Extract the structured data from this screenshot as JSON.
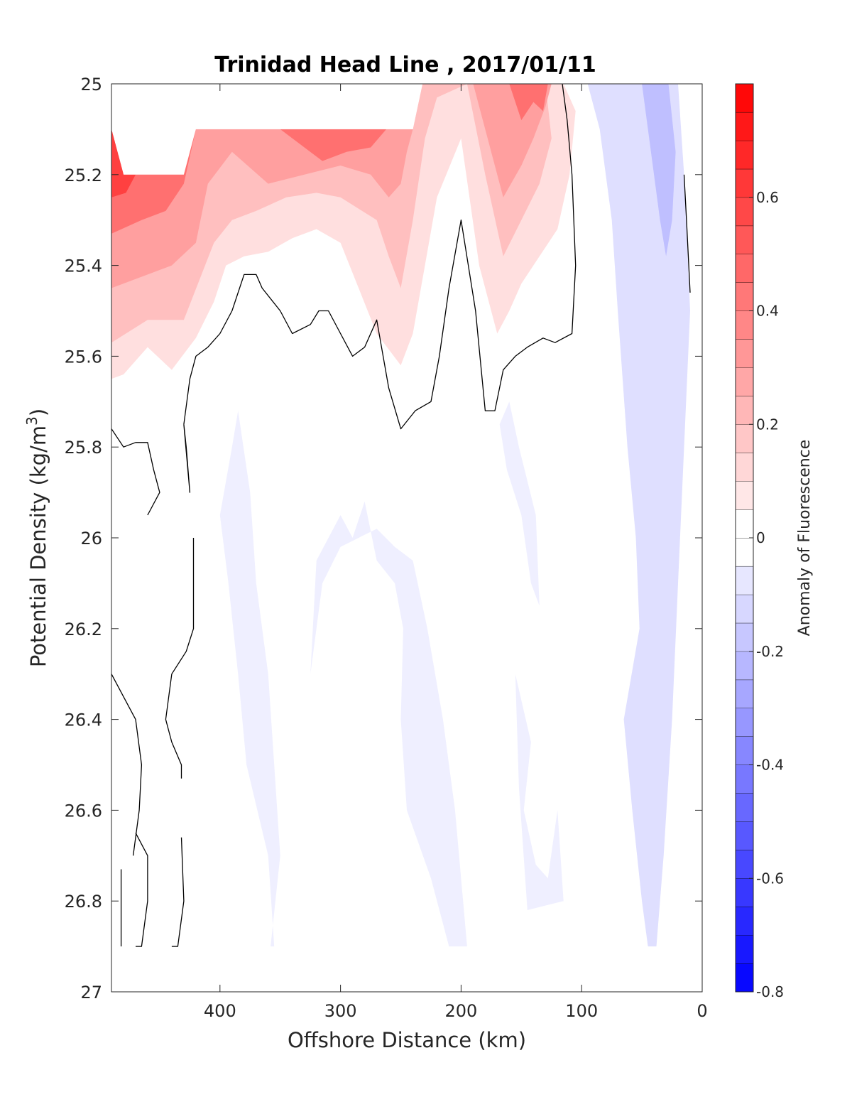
{
  "chart_data": {
    "type": "heatmap",
    "subtype": "filled contour section",
    "title": "Trinidad Head Line , 2017/01/11",
    "xlabel": "Offshore Distance (km)",
    "ylabel": "Potential Density (kg/m",
    "ylabel_superscript": "3",
    "ylabel_suffix": ")",
    "colorbar_label": "Anomaly of Fluorescence",
    "x_axis": {
      "range": [
        490,
        0
      ],
      "reversed": true,
      "ticks": [
        400,
        300,
        200,
        100,
        0
      ],
      "tick_labels": [
        "400",
        "300",
        "200",
        "100",
        "0"
      ]
    },
    "y_axis": {
      "range": [
        25,
        27
      ],
      "reversed": true,
      "ticks": [
        25,
        25.2,
        25.4,
        25.6,
        25.8,
        26,
        26.2,
        26.4,
        26.6,
        26.8,
        27
      ],
      "tick_labels": [
        "25",
        "25.2",
        "25.4",
        "25.6",
        "25.8",
        "26",
        "26.2",
        "26.4",
        "26.6",
        "26.8",
        "27"
      ]
    },
    "colorbar": {
      "range": [
        -0.8,
        0.8
      ],
      "level_step": 0.05,
      "ticks": [
        0.6,
        0.4,
        0.2,
        0,
        -0.2,
        -0.4,
        -0.6,
        -0.8
      ],
      "tick_labels": [
        "0.6",
        "0.4",
        "0.2",
        "0",
        "-0.2",
        "-0.4",
        "-0.6",
        "-0.8"
      ],
      "color_positive": "#ff0000",
      "color_negative": "#0000ff",
      "color_zero": "#ffffff"
    },
    "data_region_lower_limit": 26.9,
    "missing_data_regions": [
      {
        "x": [
          490,
          480,
          430,
          420,
          240,
          232,
          490
        ],
        "y": [
          25.0,
          25.2,
          25.2,
          25.1,
          25.1,
          25.0,
          25.0
        ]
      }
    ],
    "red_levels": [
      {
        "anomaly": 0.1,
        "x": [
          490,
          490,
          480,
          460,
          440,
          420,
          405,
          395,
          380,
          360,
          340,
          320,
          300,
          285,
          270,
          250,
          240,
          230,
          220,
          200,
          185,
          170,
          160,
          150,
          135,
          120,
          110,
          105,
          115,
          232,
          240,
          420,
          430,
          480,
          490
        ],
        "y": [
          25.1,
          25.65,
          25.64,
          25.58,
          25.63,
          25.56,
          25.48,
          25.4,
          25.38,
          25.37,
          25.34,
          25.32,
          25.35,
          25.45,
          25.55,
          25.62,
          25.55,
          25.4,
          25.25,
          25.12,
          25.4,
          25.55,
          25.5,
          25.44,
          25.38,
          25.32,
          25.2,
          25.06,
          25.0,
          25.0,
          25.1,
          25.1,
          25.2,
          25.2,
          25.1
        ]
      },
      {
        "anomaly": 0.2,
        "x": [
          490,
          490,
          460,
          430,
          405,
          390,
          370,
          345,
          320,
          300,
          270,
          260,
          250,
          240,
          230,
          220,
          195,
          180,
          165,
          150,
          135,
          125,
          130,
          232,
          240,
          420,
          430,
          480,
          490
        ],
        "y": [
          25.1,
          25.57,
          25.52,
          25.52,
          25.35,
          25.3,
          25.28,
          25.25,
          25.24,
          25.25,
          25.3,
          25.38,
          25.45,
          25.3,
          25.12,
          25.03,
          25.0,
          25.2,
          25.38,
          25.3,
          25.22,
          25.12,
          25.0,
          25.0,
          25.1,
          25.1,
          25.2,
          25.2,
          25.1
        ]
      },
      {
        "anomaly": 0.3,
        "x": [
          490,
          490,
          460,
          440,
          420,
          410,
          390,
          360,
          330,
          300,
          275,
          260,
          250,
          245,
          240,
          420,
          430,
          480,
          490
        ],
        "y": [
          25.1,
          25.45,
          25.42,
          25.4,
          25.35,
          25.22,
          25.15,
          25.22,
          25.2,
          25.18,
          25.2,
          25.25,
          25.22,
          25.15,
          25.1,
          25.1,
          25.2,
          25.2,
          25.1
        ]
      },
      {
        "anomaly": 0.3,
        "x": [
          190,
          178,
          165,
          150,
          140,
          130,
          125,
          155,
          190
        ],
        "y": [
          25.0,
          25.12,
          25.25,
          25.18,
          25.12,
          25.05,
          25.0,
          25.0,
          25.0
        ]
      },
      {
        "anomaly": 0.45,
        "x": [
          490,
          490,
          465,
          445,
          430,
          420,
          480,
          490
        ],
        "y": [
          25.1,
          25.33,
          25.3,
          25.28,
          25.22,
          25.1,
          25.2,
          25.1
        ]
      },
      {
        "anomaly": 0.45,
        "x": [
          350,
          330,
          315,
          295,
          275,
          262,
          350
        ],
        "y": [
          25.1,
          25.14,
          25.17,
          25.15,
          25.14,
          25.1,
          25.1
        ]
      },
      {
        "anomaly": 0.45,
        "x": [
          160,
          150,
          140,
          132,
          128,
          160
        ],
        "y": [
          25.0,
          25.08,
          25.04,
          25.06,
          25.0,
          25.0
        ]
      },
      {
        "anomaly": 0.6,
        "x": [
          490,
          490,
          478,
          470,
          480,
          490
        ],
        "y": [
          25.1,
          25.25,
          25.24,
          25.2,
          25.2,
          25.1
        ]
      }
    ],
    "blue_levels": [
      {
        "anomaly": -0.1,
        "x": [
          95,
          85,
          75,
          70,
          62,
          55,
          52,
          65,
          58,
          50,
          45,
          38,
          32,
          25,
          20,
          10,
          15,
          20,
          95
        ],
        "y": [
          25.0,
          25.1,
          25.3,
          25.5,
          25.8,
          26.0,
          26.2,
          26.4,
          26.6,
          26.8,
          26.9,
          26.9,
          26.7,
          26.4,
          26.1,
          25.5,
          25.2,
          25.0,
          25.0
        ]
      },
      {
        "anomaly": -0.2,
        "x": [
          50,
          45,
          40,
          35,
          30,
          25,
          22,
          28,
          36,
          50
        ],
        "y": [
          25.0,
          25.1,
          25.2,
          25.3,
          25.38,
          25.3,
          25.15,
          25.0,
          25.0,
          25.0
        ]
      },
      {
        "anomaly": -0.05,
        "x": [
          385,
          375,
          370,
          360,
          355,
          350,
          358,
          355,
          360,
          378,
          385,
          393,
          400,
          390
        ],
        "y": [
          25.72,
          25.9,
          26.1,
          26.3,
          26.5,
          26.7,
          26.9,
          26.9,
          26.7,
          26.5,
          26.3,
          26.1,
          25.95,
          25.8
        ]
      },
      {
        "anomaly": -0.05,
        "x": [
          320,
          300,
          290,
          280,
          270,
          255,
          248,
          250,
          245,
          225,
          210,
          195,
          205,
          215,
          228,
          240,
          255,
          270,
          285,
          300,
          315,
          325
        ],
        "y": [
          26.05,
          25.95,
          26.0,
          25.92,
          26.05,
          26.1,
          26.2,
          26.4,
          26.6,
          26.75,
          26.9,
          26.9,
          26.6,
          26.4,
          26.2,
          26.05,
          26.02,
          25.98,
          26.0,
          26.02,
          26.1,
          26.3
        ]
      },
      {
        "anomaly": -0.05,
        "x": [
          160,
          152,
          138,
          135,
          142,
          150,
          162,
          168
        ],
        "y": [
          25.7,
          25.8,
          25.95,
          26.15,
          26.1,
          25.95,
          25.85,
          25.75
        ]
      },
      {
        "anomaly": -0.05,
        "x": [
          155,
          142,
          148,
          138,
          128,
          120,
          115,
          145,
          152
        ],
        "y": [
          26.3,
          26.45,
          26.6,
          26.72,
          26.75,
          26.6,
          26.8,
          26.82,
          26.55
        ]
      }
    ],
    "contour_lines": [
      {
        "level": 0,
        "x": [
          116,
          112,
          108,
          105,
          108,
          122,
          132,
          145,
          155,
          165,
          172,
          180,
          188,
          200,
          210,
          218,
          225,
          238,
          250,
          260,
          270,
          280,
          290,
          300,
          310,
          318,
          325,
          340,
          350,
          365,
          370,
          380,
          390,
          400,
          410,
          420,
          425,
          430
        ],
        "y": [
          25.0,
          25.08,
          25.2,
          25.4,
          25.55,
          25.57,
          25.56,
          25.58,
          25.6,
          25.63,
          25.72,
          25.72,
          25.5,
          25.3,
          25.45,
          25.6,
          25.7,
          25.72,
          25.76,
          25.67,
          25.52,
          25.58,
          25.6,
          25.55,
          25.5,
          25.5,
          25.53,
          25.55,
          25.5,
          25.45,
          25.42,
          25.42,
          25.5,
          25.55,
          25.58,
          25.6,
          25.65,
          25.75
        ]
      },
      {
        "level": 0,
        "x": [
          430,
          428,
          425,
          430
        ],
        "y": [
          25.75,
          25.8,
          25.9,
          25.75
        ]
      },
      {
        "level": 0,
        "x": [
          490,
          480,
          470,
          460,
          455,
          450,
          460
        ],
        "y": [
          25.76,
          25.8,
          25.79,
          25.79,
          25.85,
          25.9,
          25.95
        ]
      },
      {
        "level": 0,
        "x": [
          422,
          422,
          428,
          440,
          445,
          440,
          432,
          432
        ],
        "y": [
          26.0,
          26.2,
          26.25,
          26.3,
          26.4,
          26.45,
          26.5,
          26.53
        ]
      },
      {
        "level": 0,
        "x": [
          490,
          480,
          470,
          465,
          467,
          472
        ],
        "y": [
          26.3,
          26.35,
          26.4,
          26.5,
          26.6,
          26.7
        ]
      },
      {
        "level": 0,
        "x": [
          470,
          460,
          460,
          465,
          470
        ],
        "y": [
          26.65,
          26.7,
          26.8,
          26.9,
          26.9
        ]
      },
      {
        "level": 0,
        "x": [
          432,
          430,
          435,
          440
        ],
        "y": [
          26.66,
          26.8,
          26.9,
          26.9
        ]
      },
      {
        "level": 0,
        "x": [
          482,
          482
        ],
        "y": [
          26.73,
          26.9
        ]
      },
      {
        "level": 0,
        "x": [
          15,
          13,
          10
        ],
        "y": [
          25.2,
          25.3,
          25.46
        ]
      }
    ]
  }
}
